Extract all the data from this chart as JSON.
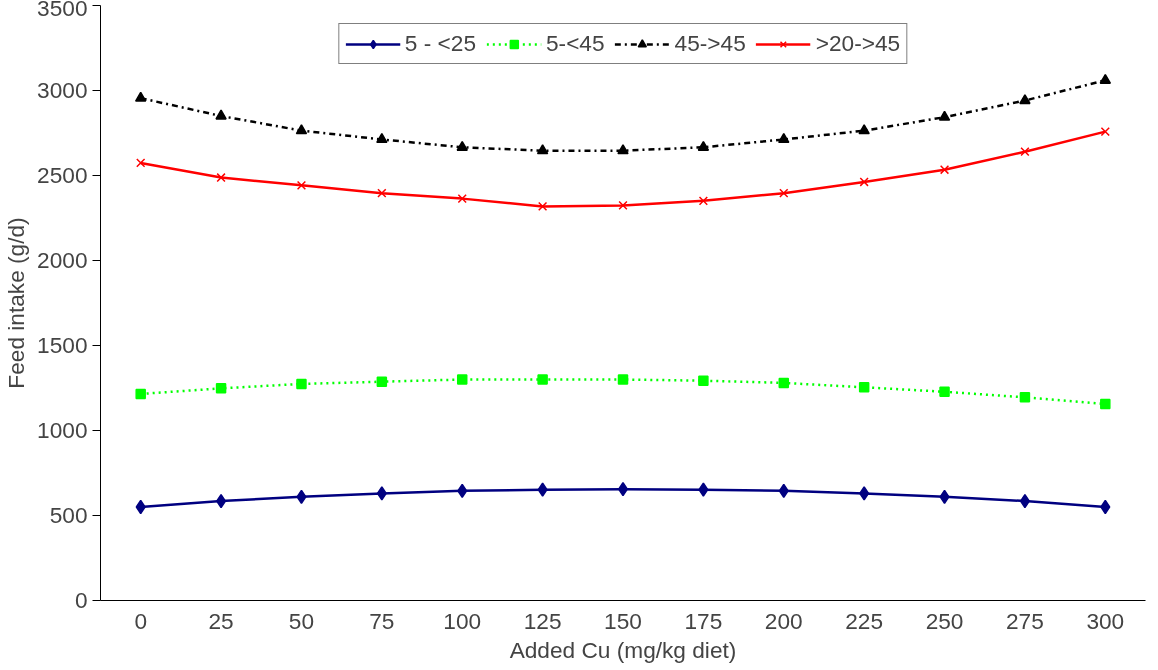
{
  "chart_data": {
    "type": "line",
    "xlabel": "Added Cu (mg/kg diet)",
    "ylabel": "Feed intake (g/d)",
    "categories": [
      "0",
      "25",
      "50",
      "75",
      "100",
      "125",
      "150",
      "175",
      "200",
      "225",
      "250",
      "275",
      "300"
    ],
    "ylim": [
      0,
      3500
    ],
    "yticks": [
      0,
      500,
      1000,
      1500,
      2000,
      2500,
      3000,
      3500
    ],
    "grid": false,
    "legend": "top",
    "series": [
      {
        "name": "5 - <25",
        "color": "#000080",
        "marker": "diamond",
        "line_style": "solid",
        "values": [
          550,
          585,
          610,
          630,
          645,
          652,
          655,
          652,
          645,
          630,
          610,
          585,
          550
        ]
      },
      {
        "name": "5-<45",
        "color": "#00ff00",
        "marker": "square",
        "line_style": "dotted",
        "values": [
          1215,
          1248,
          1274,
          1287,
          1300,
          1300,
          1300,
          1293,
          1280,
          1254,
          1228,
          1195,
          1156
        ]
      },
      {
        "name": "45->45",
        "color": "#000000",
        "marker": "triangle",
        "line_style": "dashdot",
        "values": [
          2955,
          2850,
          2764,
          2712,
          2666,
          2646,
          2646,
          2666,
          2712,
          2764,
          2843,
          2941,
          3060
        ]
      },
      {
        "name": ">20->45",
        "color": "#ff0000",
        "marker": "cross",
        "line_style": "solid",
        "values": [
          2574,
          2488,
          2442,
          2396,
          2364,
          2318,
          2324,
          2351,
          2396,
          2462,
          2534,
          2640,
          2758
        ]
      }
    ]
  }
}
